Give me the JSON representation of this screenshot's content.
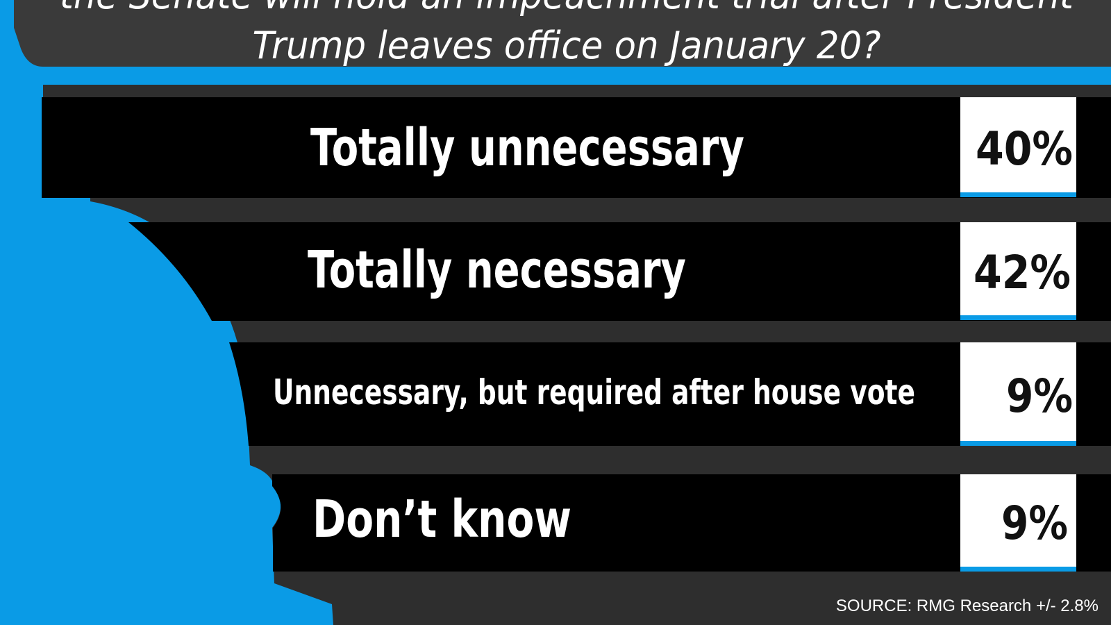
{
  "header": {
    "question_lines": [
      "the Senate will hold an impeachment trial after President",
      "Trump leaves office on January 20?"
    ]
  },
  "rows": [
    {
      "label": "Totally unnecessary",
      "value": "40%"
    },
    {
      "label": "Totally necessary",
      "value": "42%"
    },
    {
      "label": "Unnecessary, but required after house vote",
      "value": "9%"
    },
    {
      "label": "Don’t know",
      "value": "9%"
    }
  ],
  "footer": {
    "source": "SOURCE: RMG Research +/- 2.8%"
  }
}
